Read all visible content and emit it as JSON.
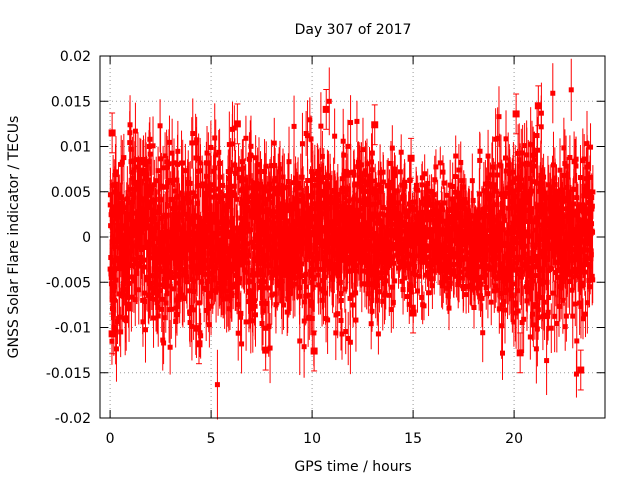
{
  "chart_data": {
    "type": "scatter",
    "title": "Day 307 of 2017",
    "xlabel": "GPS time / hours",
    "ylabel": "GNSS Solar Flare indicator / TECUs",
    "xlim": [
      -0.5,
      24.5
    ],
    "ylim": [
      -0.02,
      0.02
    ],
    "x_ticks": [
      0,
      5,
      10,
      15,
      20
    ],
    "x_tick_labels": [
      "0",
      "5",
      "10",
      "15",
      "20"
    ],
    "y_ticks": [
      -0.02,
      -0.015,
      -0.01,
      -0.005,
      0,
      0.005,
      0.01,
      0.015,
      0.02
    ],
    "y_tick_labels": [
      "-0.02",
      "-0.015",
      "-0.01",
      "-0.005",
      "0",
      "0.005",
      "0.01",
      "0.015",
      "0.02"
    ],
    "grid": true,
    "series": [
      {
        "name": "GNSS Solar Flare indicator",
        "color": "#ff0000",
        "marker": "square",
        "error_bars": true,
        "x_range": [
          0,
          23.9
        ],
        "approx_point_count": 2880,
        "spread_envelope": [
          {
            "x": 0,
            "sd": 0.0048
          },
          {
            "x": 3,
            "sd": 0.0045
          },
          {
            "x": 6,
            "sd": 0.0047
          },
          {
            "x": 10,
            "sd": 0.0046
          },
          {
            "x": 13,
            "sd": 0.0042
          },
          {
            "x": 15,
            "sd": 0.003
          },
          {
            "x": 18,
            "sd": 0.0036
          },
          {
            "x": 20,
            "sd": 0.005
          },
          {
            "x": 22,
            "sd": 0.0048
          },
          {
            "x": 23.9,
            "sd": 0.0042
          }
        ],
        "notable_points": [
          {
            "x": 0.1,
            "y": 0.0115
          },
          {
            "x": 0.1,
            "y": -0.0107
          },
          {
            "x": 4.4,
            "y": -0.0118
          },
          {
            "x": 6.3,
            "y": 0.0125
          },
          {
            "x": 7.7,
            "y": -0.0125
          },
          {
            "x": 10.1,
            "y": -0.0126
          },
          {
            "x": 10.7,
            "y": 0.0141
          },
          {
            "x": 13.1,
            "y": 0.0124
          },
          {
            "x": 14.9,
            "y": 0.0087
          },
          {
            "x": 15.0,
            "y": -0.0084
          },
          {
            "x": 20.1,
            "y": 0.0136
          },
          {
            "x": 20.3,
            "y": -0.0128
          },
          {
            "x": 21.2,
            "y": 0.0145
          },
          {
            "x": 23.3,
            "y": -0.0147
          }
        ]
      }
    ]
  }
}
